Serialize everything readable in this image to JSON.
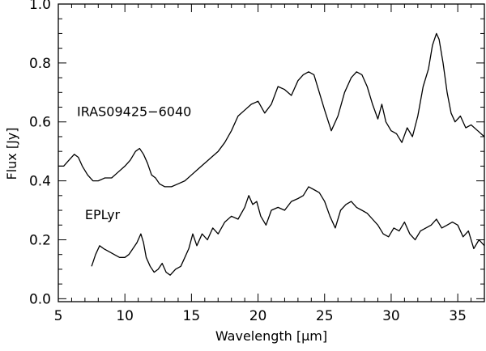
{
  "chart_data": {
    "type": "line",
    "title": "",
    "xlabel": "Wavelength [μm]",
    "ylabel": "Flux [Jy]",
    "xlim": [
      5,
      37
    ],
    "ylim": [
      -0.01,
      1.0
    ],
    "x_ticks": [
      5,
      10,
      15,
      20,
      25,
      30,
      35
    ],
    "x_tick_labels": [
      "5",
      "10",
      "15",
      "20",
      "25",
      "30",
      "35"
    ],
    "y_ticks": [
      0.0,
      0.2,
      0.4,
      0.6,
      0.8,
      1.0
    ],
    "y_tick_labels": [
      "0.0",
      "0.2",
      "0.4",
      "0.6",
      "0.8",
      "1.0"
    ],
    "grid": false,
    "line_color": "#000000",
    "series": [
      {
        "name": "IRAS09425−6040",
        "label_at": [
          6.4,
          0.62
        ],
        "x": [
          5.0,
          5.4,
          5.8,
          6.2,
          6.5,
          6.8,
          7.2,
          7.6,
          8.0,
          8.5,
          9.0,
          9.5,
          10.0,
          10.4,
          10.8,
          11.1,
          11.4,
          11.7,
          12.0,
          12.3,
          12.6,
          13.0,
          13.5,
          14.0,
          14.5,
          15.0,
          15.5,
          16.0,
          16.5,
          17.0,
          17.5,
          18.0,
          18.5,
          19.0,
          19.5,
          20.0,
          20.5,
          21.0,
          21.5,
          22.0,
          22.5,
          23.0,
          23.4,
          23.8,
          24.2,
          24.6,
          25.0,
          25.5,
          26.0,
          26.5,
          27.0,
          27.4,
          27.8,
          28.2,
          28.6,
          29.0,
          29.3,
          29.6,
          30.0,
          30.4,
          30.8,
          31.2,
          31.6,
          32.0,
          32.4,
          32.8,
          33.1,
          33.4,
          33.6,
          33.9,
          34.2,
          34.5,
          34.8,
          35.2,
          35.6,
          36.0,
          36.5,
          37.0
        ],
        "y": [
          0.45,
          0.45,
          0.47,
          0.49,
          0.48,
          0.45,
          0.42,
          0.4,
          0.4,
          0.41,
          0.41,
          0.43,
          0.45,
          0.47,
          0.5,
          0.51,
          0.49,
          0.46,
          0.42,
          0.41,
          0.39,
          0.38,
          0.38,
          0.39,
          0.4,
          0.42,
          0.44,
          0.46,
          0.48,
          0.5,
          0.53,
          0.57,
          0.62,
          0.64,
          0.66,
          0.67,
          0.63,
          0.66,
          0.72,
          0.71,
          0.69,
          0.74,
          0.76,
          0.77,
          0.76,
          0.7,
          0.64,
          0.57,
          0.62,
          0.7,
          0.75,
          0.77,
          0.76,
          0.72,
          0.66,
          0.61,
          0.66,
          0.6,
          0.57,
          0.56,
          0.53,
          0.58,
          0.55,
          0.62,
          0.72,
          0.78,
          0.86,
          0.9,
          0.88,
          0.8,
          0.7,
          0.63,
          0.6,
          0.62,
          0.58,
          0.59,
          0.57,
          0.55
        ]
      },
      {
        "name": "EPLyr",
        "label_at": [
          7.0,
          0.27
        ],
        "x": [
          7.5,
          7.8,
          8.1,
          8.4,
          8.8,
          9.2,
          9.6,
          10.0,
          10.3,
          10.6,
          10.9,
          11.2,
          11.4,
          11.6,
          11.9,
          12.2,
          12.5,
          12.8,
          13.1,
          13.4,
          13.8,
          14.2,
          14.5,
          14.8,
          15.1,
          15.4,
          15.8,
          16.2,
          16.6,
          17.0,
          17.5,
          18.0,
          18.5,
          19.0,
          19.3,
          19.6,
          19.9,
          20.2,
          20.6,
          21.0,
          21.5,
          22.0,
          22.5,
          23.0,
          23.4,
          23.8,
          24.2,
          24.6,
          25.0,
          25.4,
          25.8,
          26.2,
          26.6,
          27.0,
          27.4,
          27.8,
          28.2,
          28.6,
          29.0,
          29.4,
          29.8,
          30.2,
          30.6,
          31.0,
          31.4,
          31.8,
          32.2,
          32.6,
          33.0,
          33.4,
          33.8,
          34.2,
          34.6,
          35.0,
          35.4,
          35.8,
          36.2,
          36.6,
          37.0
        ],
        "y": [
          0.11,
          0.15,
          0.18,
          0.17,
          0.16,
          0.15,
          0.14,
          0.14,
          0.15,
          0.17,
          0.19,
          0.22,
          0.19,
          0.14,
          0.11,
          0.09,
          0.1,
          0.12,
          0.09,
          0.08,
          0.1,
          0.11,
          0.14,
          0.17,
          0.22,
          0.18,
          0.22,
          0.2,
          0.24,
          0.22,
          0.26,
          0.28,
          0.27,
          0.31,
          0.35,
          0.32,
          0.33,
          0.28,
          0.25,
          0.3,
          0.31,
          0.3,
          0.33,
          0.34,
          0.35,
          0.38,
          0.37,
          0.36,
          0.33,
          0.28,
          0.24,
          0.3,
          0.32,
          0.33,
          0.31,
          0.3,
          0.29,
          0.27,
          0.25,
          0.22,
          0.21,
          0.24,
          0.23,
          0.26,
          0.22,
          0.2,
          0.23,
          0.24,
          0.25,
          0.27,
          0.24,
          0.25,
          0.26,
          0.25,
          0.21,
          0.23,
          0.17,
          0.2,
          0.18
        ]
      }
    ]
  }
}
